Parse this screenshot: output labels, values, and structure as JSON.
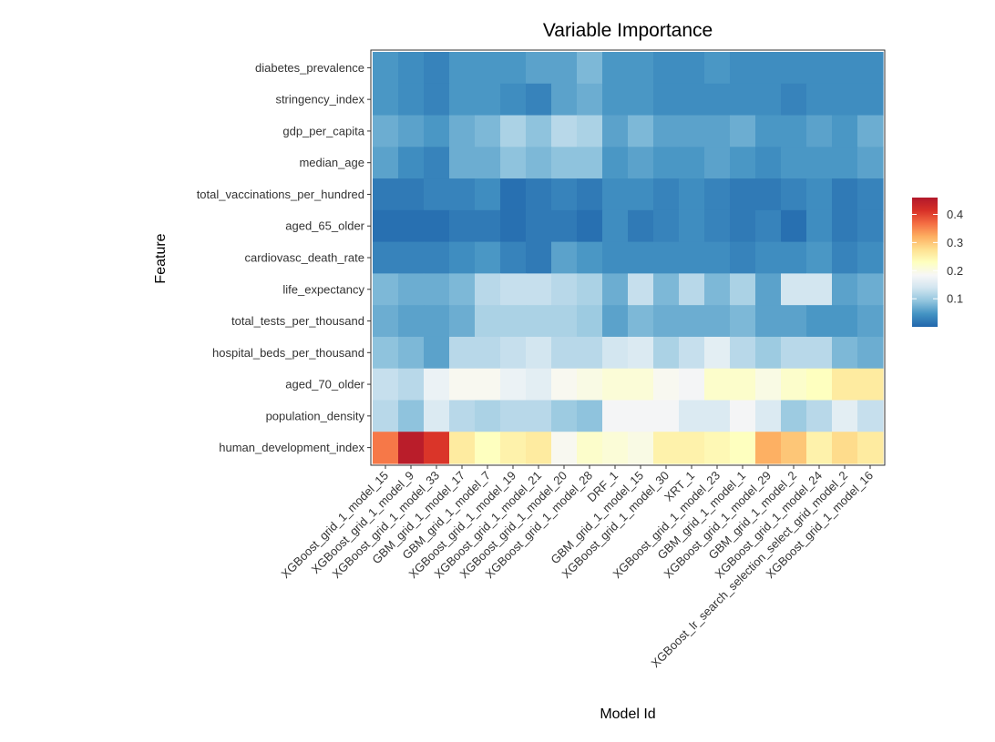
{
  "chart_data": {
    "type": "heatmap",
    "title": "Variable Importance",
    "xlabel": "Model Id",
    "ylabel": "Feature",
    "grid": false,
    "legend_position": "right",
    "x_categories": [
      "XGBoost_grid_1_model_15",
      "XGBoost_grid_1_model_9",
      "XGBoost_grid_1_model_33",
      "GBM_grid_1_model_17",
      "GBM_grid_1_model_7",
      "XGBoost_grid_1_model_19",
      "XGBoost_grid_1_model_21",
      "XGBoost_grid_1_model_20",
      "XGBoost_grid_1_model_28",
      "DRF_1",
      "GBM_grid_1_model_15",
      "XGBoost_grid_1_model_30",
      "XRT_1",
      "XGBoost_grid_1_model_23",
      "GBM_grid_1_model_1",
      "XGBoost_grid_1_model_29",
      "GBM_grid_1_model_2",
      "XGBoost_grid_1_model_24",
      "XGBoost_lr_search_selection_select_grid_model_2",
      "XGBoost_grid_1_model_16"
    ],
    "y_categories": [
      "diabetes_prevalence",
      "stringency_index",
      "gdp_per_capita",
      "median_age",
      "total_vaccinations_per_hundred",
      "aged_65_older",
      "cardiovasc_death_rate",
      "life_expectancy",
      "total_tests_per_thousand",
      "hospital_beds_per_thousand",
      "aged_70_older",
      "population_density",
      "human_development_index"
    ],
    "values": [
      [
        0.05,
        0.04,
        0.03,
        0.05,
        0.05,
        0.05,
        0.06,
        0.06,
        0.08,
        0.05,
        0.05,
        0.04,
        0.04,
        0.05,
        0.04,
        0.04,
        0.04,
        0.04,
        0.04,
        0.04
      ],
      [
        0.05,
        0.04,
        0.03,
        0.05,
        0.05,
        0.04,
        0.03,
        0.06,
        0.07,
        0.05,
        0.05,
        0.04,
        0.04,
        0.04,
        0.04,
        0.04,
        0.03,
        0.04,
        0.04,
        0.04
      ],
      [
        0.07,
        0.06,
        0.05,
        0.07,
        0.08,
        0.11,
        0.09,
        0.12,
        0.11,
        0.06,
        0.08,
        0.06,
        0.06,
        0.06,
        0.07,
        0.05,
        0.05,
        0.06,
        0.05,
        0.07
      ],
      [
        0.06,
        0.04,
        0.03,
        0.07,
        0.07,
        0.09,
        0.08,
        0.09,
        0.09,
        0.05,
        0.06,
        0.05,
        0.05,
        0.06,
        0.05,
        0.04,
        0.05,
        0.05,
        0.05,
        0.06
      ],
      [
        0.02,
        0.02,
        0.03,
        0.03,
        0.04,
        0.01,
        0.02,
        0.03,
        0.02,
        0.04,
        0.04,
        0.03,
        0.04,
        0.03,
        0.02,
        0.02,
        0.03,
        0.04,
        0.02,
        0.03
      ],
      [
        0.01,
        0.01,
        0.01,
        0.02,
        0.02,
        0.01,
        0.02,
        0.02,
        0.01,
        0.04,
        0.02,
        0.03,
        0.04,
        0.03,
        0.02,
        0.03,
        0.01,
        0.04,
        0.02,
        0.03
      ],
      [
        0.03,
        0.03,
        0.03,
        0.04,
        0.05,
        0.03,
        0.02,
        0.06,
        0.05,
        0.04,
        0.04,
        0.04,
        0.04,
        0.04,
        0.03,
        0.04,
        0.04,
        0.05,
        0.03,
        0.04
      ],
      [
        0.08,
        0.07,
        0.07,
        0.08,
        0.12,
        0.13,
        0.13,
        0.12,
        0.11,
        0.07,
        0.13,
        0.08,
        0.12,
        0.08,
        0.11,
        0.06,
        0.14,
        0.14,
        0.06,
        0.07
      ],
      [
        0.07,
        0.06,
        0.06,
        0.07,
        0.11,
        0.11,
        0.11,
        0.11,
        0.1,
        0.06,
        0.08,
        0.07,
        0.07,
        0.07,
        0.08,
        0.06,
        0.06,
        0.05,
        0.05,
        0.06
      ],
      [
        0.09,
        0.08,
        0.06,
        0.12,
        0.12,
        0.13,
        0.14,
        0.12,
        0.12,
        0.14,
        0.15,
        0.11,
        0.13,
        0.16,
        0.12,
        0.1,
        0.12,
        0.12,
        0.08,
        0.07
      ],
      [
        0.13,
        0.12,
        0.17,
        0.19,
        0.19,
        0.17,
        0.16,
        0.19,
        0.2,
        0.21,
        0.21,
        0.19,
        0.18,
        0.22,
        0.22,
        0.2,
        0.22,
        0.23,
        0.26,
        0.26
      ],
      [
        0.12,
        0.09,
        0.15,
        0.12,
        0.11,
        0.12,
        0.12,
        0.1,
        0.09,
        0.18,
        0.18,
        0.18,
        0.15,
        0.15,
        0.18,
        0.15,
        0.1,
        0.12,
        0.16,
        0.13
      ],
      [
        0.36,
        0.45,
        0.41,
        0.26,
        0.23,
        0.25,
        0.26,
        0.19,
        0.22,
        0.21,
        0.2,
        0.25,
        0.25,
        0.24,
        0.23,
        0.32,
        0.3,
        0.25,
        0.28,
        0.26
      ]
    ],
    "colorbar": {
      "ticks": [
        0.1,
        0.2,
        0.3,
        0.4
      ],
      "tick_labels": [
        "0.1",
        "0.2",
        "0.3",
        "0.4"
      ],
      "range": [
        0.0,
        0.46
      ],
      "colors": [
        "#2166AC",
        "#4393C3",
        "#92C5DE",
        "#D1E5F0",
        "#F7F7F7",
        "#FEFFBF",
        "#FEE090",
        "#FDAE61",
        "#F46D43",
        "#D73027",
        "#B2182B"
      ]
    }
  }
}
